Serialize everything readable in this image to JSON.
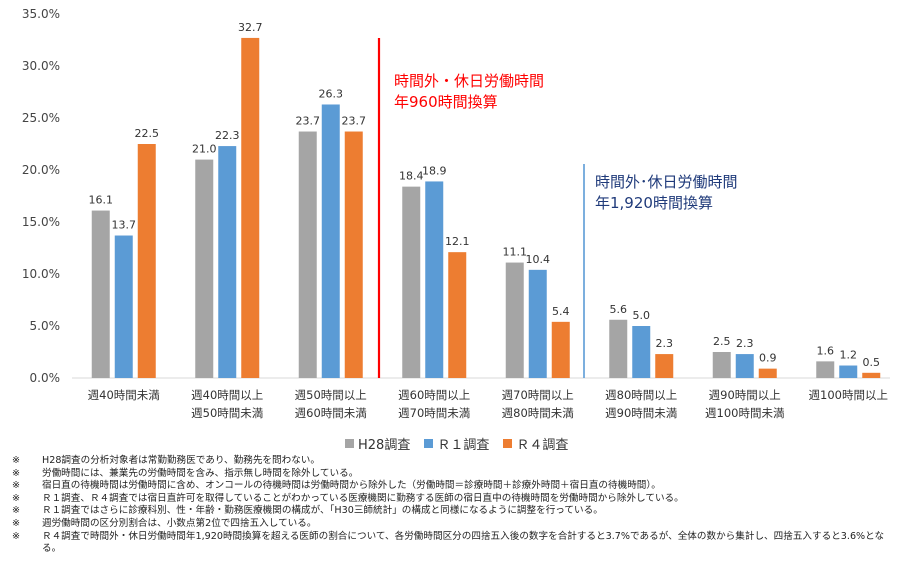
{
  "chart_data": {
    "type": "bar",
    "ylim": [
      0,
      35
    ],
    "yticks": [
      "0.0%",
      "5.0%",
      "10.0%",
      "15.0%",
      "20.0%",
      "25.0%",
      "30.0%",
      "35.0%"
    ],
    "categories": [
      [
        "週40時間未満"
      ],
      [
        "週40時間以上",
        "週50時間未満"
      ],
      [
        "週50時間以上",
        "週60時間未満"
      ],
      [
        "週60時間以上",
        "週70時間未満"
      ],
      [
        "週70時間以上",
        "週80時間未満"
      ],
      [
        "週80時間以上",
        "週90時間未満"
      ],
      [
        "週90時間以上",
        "週100時間未満"
      ],
      [
        "週100時間以上"
      ]
    ],
    "series": [
      {
        "name": "H28調査",
        "color": "#a5a5a5",
        "values": [
          16.1,
          21.0,
          23.7,
          18.4,
          11.1,
          5.6,
          2.5,
          1.6
        ]
      },
      {
        "name": "Ｒ１調査",
        "color": "#5b9bd5",
        "values": [
          13.7,
          22.3,
          26.3,
          18.9,
          10.4,
          5.0,
          2.3,
          1.2
        ]
      },
      {
        "name": "Ｒ４調査",
        "color": "#ed7d31",
        "values": [
          22.5,
          32.7,
          23.7,
          12.1,
          5.4,
          2.3,
          0.9,
          0.5
        ]
      }
    ],
    "annotations": [
      {
        "lines": [
          "時間外・休日労働時間",
          "年960時間換算"
        ],
        "color": "#ff0000"
      },
      {
        "lines": [
          "時間外･休日労働時間",
          "年1,920時間換算"
        ],
        "color": "#1f3a7a"
      }
    ],
    "legend_position": "bottom"
  },
  "notes": [
    {
      "mark": "※",
      "text": "H28調査の分析対象者は常勤勤務医であり、勤務先を問わない。"
    },
    {
      "mark": "※",
      "text": "労働時間には、兼業先の労働時間を含み、指示無し時間を除外している。"
    },
    {
      "mark": "※",
      "text": "宿日直の待機時間は労働時間に含め、オンコールの待機時間は労働時間から除外した（労働時間＝診療時間＋診療外時間＋宿日直の待機時間）。"
    },
    {
      "mark": "※",
      "text": "Ｒ１調査、Ｒ４調査では宿日直許可を取得していることがわかっている医療機関に勤務する医師の宿日直中の待機時間を労働時間から除外している。"
    },
    {
      "mark": "※",
      "text": "Ｒ１調査ではさらに診療科別、性・年齢・勤務医療機関の構成が、「H30三師統計」の構成と同様になるように調整を行っている。"
    },
    {
      "mark": "※",
      "text": "週労働時間の区分別割合は、小数点第2位で四捨五入している。"
    },
    {
      "mark": "※",
      "text": "Ｒ４調査で時間外・休日労働時間年1,920時間換算を超える医師の割合について、各労働時間区分の四捨五入後の数字を合計すると3.7%であるが、全体の数から集計し、四捨五入すると3.6%となる。"
    }
  ]
}
